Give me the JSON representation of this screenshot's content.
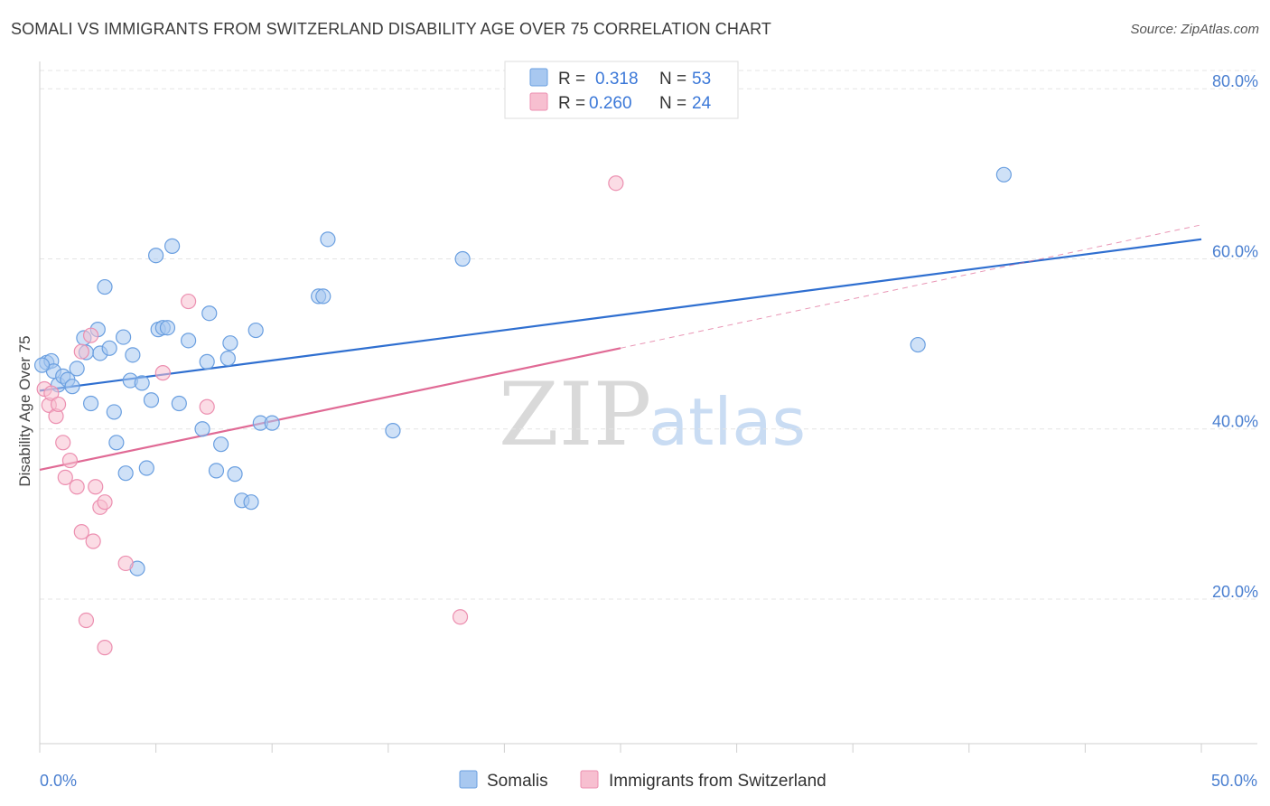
{
  "title": "SOMALI VS IMMIGRANTS FROM SWITZERLAND DISABILITY AGE OVER 75 CORRELATION CHART",
  "source": "Source: ZipAtlas.com",
  "watermark": {
    "zip": "ZIP",
    "atlas": "atlas"
  },
  "legend": {
    "r_label": "R =",
    "n_label": "N =",
    "rows": [
      {
        "r": "0.318",
        "n": "53"
      },
      {
        "r": "0.260",
        "n": "24"
      }
    ]
  },
  "bottom_legend": [
    "Somalis",
    "Immigrants from Switzerland"
  ],
  "colors": {
    "somalis_fill": "#a8c8f0",
    "somalis_stroke": "#6a9fe0",
    "somalis_line": "#2f6fd0",
    "swiss_fill": "#f7bfd0",
    "swiss_stroke": "#ec8fb0",
    "swiss_line": "#e06a95"
  },
  "chart_data": {
    "type": "scatter",
    "xlabel": "",
    "ylabel": "Disability Age Over 75",
    "xlim": [
      0,
      50
    ],
    "ylim": [
      3,
      83
    ],
    "x_tick_labels": [
      "0.0%",
      "50.0%"
    ],
    "y_ticks": [
      20,
      40,
      60,
      80
    ],
    "y_tick_labels": [
      "20.0%",
      "40.0%",
      "60.0%",
      "80.0%"
    ],
    "grid": true,
    "legend_position": "top-center",
    "series": [
      {
        "name": "Somalis",
        "points": [
          [
            0.3,
            47.8
          ],
          [
            0.5,
            48.0
          ],
          [
            0.6,
            46.8
          ],
          [
            0.8,
            45.2
          ],
          [
            1.0,
            46.2
          ],
          [
            1.2,
            45.8
          ],
          [
            1.4,
            45.0
          ],
          [
            1.6,
            47.1
          ],
          [
            1.9,
            50.7
          ],
          [
            2.0,
            49.0
          ],
          [
            2.2,
            43.0
          ],
          [
            2.5,
            51.7
          ],
          [
            2.6,
            48.9
          ],
          [
            2.8,
            56.7
          ],
          [
            3.0,
            49.5
          ],
          [
            3.2,
            42.0
          ],
          [
            3.3,
            38.4
          ],
          [
            3.6,
            50.8
          ],
          [
            3.7,
            34.8
          ],
          [
            3.9,
            45.7
          ],
          [
            4.0,
            48.7
          ],
          [
            4.2,
            23.6
          ],
          [
            4.4,
            45.4
          ],
          [
            4.6,
            35.4
          ],
          [
            4.8,
            43.4
          ],
          [
            5.0,
            60.4
          ],
          [
            5.1,
            51.7
          ],
          [
            5.3,
            51.9
          ],
          [
            5.5,
            51.9
          ],
          [
            5.7,
            61.5
          ],
          [
            6.0,
            43.0
          ],
          [
            6.4,
            50.4
          ],
          [
            7.0,
            40.0
          ],
          [
            7.2,
            47.9
          ],
          [
            7.3,
            53.6
          ],
          [
            7.6,
            35.1
          ],
          [
            7.8,
            38.2
          ],
          [
            8.1,
            48.3
          ],
          [
            8.2,
            50.1
          ],
          [
            8.4,
            34.7
          ],
          [
            8.7,
            31.6
          ],
          [
            9.1,
            31.4
          ],
          [
            9.3,
            51.6
          ],
          [
            9.5,
            40.7
          ],
          [
            10.0,
            40.7
          ],
          [
            12.0,
            55.6
          ],
          [
            12.2,
            55.6
          ],
          [
            12.4,
            62.3
          ],
          [
            15.2,
            39.8
          ],
          [
            18.2,
            60.0
          ],
          [
            37.8,
            49.9
          ],
          [
            41.5,
            69.9
          ],
          [
            0.1,
            47.5
          ]
        ]
      },
      {
        "name": "Immigrants from Switzerland",
        "points": [
          [
            0.2,
            44.7
          ],
          [
            0.4,
            42.8
          ],
          [
            0.5,
            44.2
          ],
          [
            0.7,
            41.5
          ],
          [
            0.8,
            42.9
          ],
          [
            1.0,
            38.4
          ],
          [
            1.1,
            34.3
          ],
          [
            1.3,
            36.3
          ],
          [
            1.6,
            33.2
          ],
          [
            1.8,
            27.9
          ],
          [
            1.8,
            49.1
          ],
          [
            2.0,
            17.5
          ],
          [
            2.2,
            51.0
          ],
          [
            2.3,
            26.8
          ],
          [
            2.4,
            33.2
          ],
          [
            2.6,
            30.8
          ],
          [
            2.8,
            31.4
          ],
          [
            2.8,
            14.3
          ],
          [
            3.7,
            24.2
          ],
          [
            5.3,
            46.6
          ],
          [
            6.4,
            55.0
          ],
          [
            7.2,
            42.6
          ],
          [
            18.1,
            17.9
          ],
          [
            24.8,
            68.9
          ]
        ]
      }
    ],
    "trend_lines": [
      {
        "name": "Somalis",
        "x": [
          0,
          50
        ],
        "y": [
          44.5,
          62.3
        ]
      },
      {
        "name": "Immigrants from Switzerland",
        "x": [
          0,
          25
        ],
        "y": [
          35.2,
          49.5
        ],
        "dashed_extension_to": [
          50,
          64.0
        ]
      }
    ]
  }
}
